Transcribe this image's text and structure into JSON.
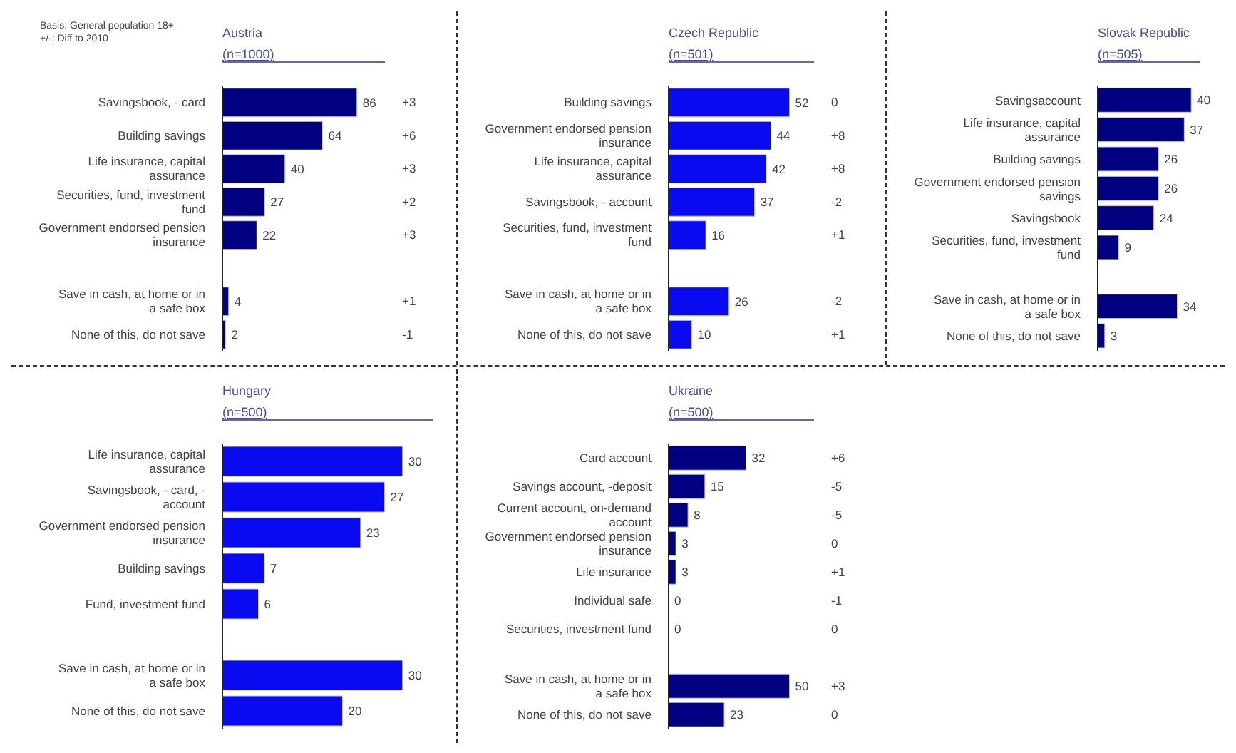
{
  "chart_data": [
    {
      "type": "bar",
      "orientation": "horizontal",
      "title": "Austria",
      "subtitle": "(n=1000)",
      "data_labels": true,
      "color": "#000080",
      "categories": [
        "Savingsbook, - card",
        "Building savings",
        "Life insurance, capital assurance",
        "Securities, fund, investment fund",
        "Government endorsed pension insurance",
        null,
        "Save in cash, at home or in a safe box",
        "None of this, do not save"
      ],
      "values": [
        86,
        64,
        40,
        27,
        22,
        null,
        4,
        2
      ],
      "annotations": [
        "Basis: General population 18+",
        "+/-: Diff to 2010",
        "+3",
        "+6",
        "+3",
        "+2",
        "+3",
        "+1",
        "-1"
      ]
    },
    {
      "type": "bar",
      "orientation": "horizontal",
      "title": "Czech Republic",
      "subtitle": "(n=501)",
      "data_labels": true,
      "color": "#0a0af0",
      "categories": [
        "Building savings",
        "Government endorsed pension insurance",
        "Life insurance, capital assurance",
        "Savingsbook, - account",
        "Securities, fund, investment fund",
        null,
        "Save in cash, at home or in a safe box",
        "None of this, do not save"
      ],
      "values": [
        52,
        44,
        42,
        37,
        16,
        null,
        26,
        10
      ],
      "annotations": [
        "0",
        "+8",
        "+8",
        "-2",
        "+1",
        "-2",
        "+1"
      ]
    },
    {
      "type": "bar",
      "orientation": "horizontal",
      "title": "Slovak Republic",
      "subtitle": "(n=505)",
      "data_labels": true,
      "color": "#000080",
      "categories": [
        "Savingsaccount",
        "Life insurance, capital assurance",
        "Building savings",
        "Government endorsed pension savings",
        "Savingsbook",
        "Securities, fund, investment fund",
        null,
        "Save in cash, at home or in a safe box",
        "None of this, do not save"
      ],
      "values": [
        40,
        37,
        26,
        26,
        24,
        9,
        null,
        34,
        3
      ]
    },
    {
      "type": "bar",
      "orientation": "horizontal",
      "title": "Hungary",
      "subtitle": "(n=500)",
      "data_labels": true,
      "color": "#0a0af0",
      "categories": [
        "Life insurance, capital assurance",
        "Savingsbook, - card, - account",
        "Government endorsed pension insurance",
        "Building savings",
        "Fund, investment fund",
        null,
        "Save in cash, at home or in a safe box",
        "None of this, do not save"
      ],
      "values": [
        30,
        27,
        23,
        7,
        6,
        null,
        30,
        20
      ]
    },
    {
      "type": "bar",
      "orientation": "horizontal",
      "title": "Ukraine",
      "subtitle": "(n=500)",
      "data_labels": true,
      "color": "#000080",
      "categories": [
        "Card account",
        "Savings account, -deposit",
        "Current account, on-demand account",
        "Government endorsed pension insurance",
        "Life insurance",
        "Individual safe",
        "Securities, investment fund",
        null,
        "Save in cash, at home or in a safe box",
        "None of this, do not save"
      ],
      "values": [
        32,
        15,
        8,
        3,
        3,
        0,
        0,
        null,
        50,
        23
      ],
      "annotations": [
        "+6",
        "-5",
        "-5",
        "0",
        "+1",
        "-1",
        "0",
        "+3",
        "0"
      ]
    }
  ]
}
